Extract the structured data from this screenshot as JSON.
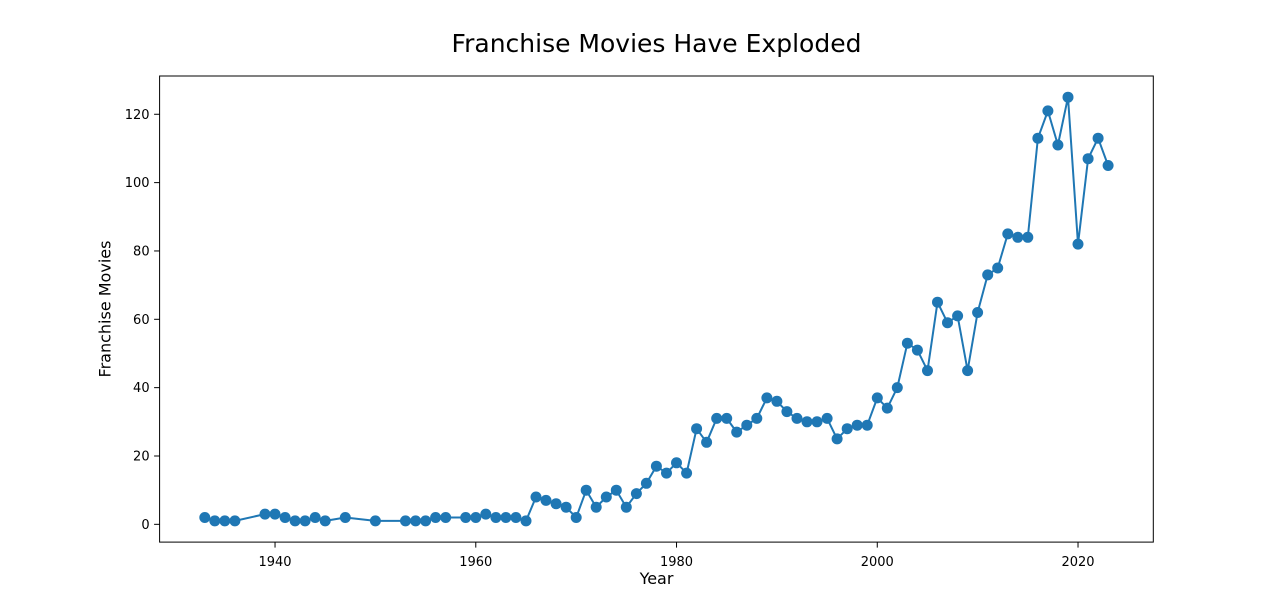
{
  "chart_data": {
    "type": "line",
    "title": "Franchise Movies Have Exploded",
    "xlabel": "Year",
    "ylabel": "Franchise Movies",
    "line_color": "#1f77b4",
    "marker": "circle",
    "grid": false,
    "legend": "none",
    "xlim": [
      1928.5,
      2027.5
    ],
    "ylim": [
      -5.2,
      131.2
    ],
    "x_ticks": [
      1940,
      1960,
      1980,
      2000,
      2020
    ],
    "y_ticks": [
      0,
      20,
      40,
      60,
      80,
      100,
      120
    ],
    "x": [
      1933,
      1934,
      1935,
      1936,
      1939,
      1940,
      1941,
      1942,
      1943,
      1944,
      1945,
      1947,
      1950,
      1953,
      1954,
      1955,
      1956,
      1957,
      1959,
      1960,
      1961,
      1962,
      1963,
      1964,
      1965,
      1966,
      1967,
      1968,
      1969,
      1970,
      1971,
      1972,
      1973,
      1974,
      1975,
      1976,
      1977,
      1978,
      1979,
      1980,
      1981,
      1982,
      1983,
      1984,
      1985,
      1986,
      1987,
      1988,
      1989,
      1990,
      1991,
      1992,
      1993,
      1994,
      1995,
      1996,
      1997,
      1998,
      1999,
      2000,
      2001,
      2002,
      2003,
      2004,
      2005,
      2006,
      2007,
      2008,
      2009,
      2010,
      2011,
      2012,
      2013,
      2014,
      2015,
      2016,
      2017,
      2018,
      2019,
      2020,
      2021,
      2022,
      2023
    ],
    "y": [
      2,
      1,
      1,
      1,
      3,
      3,
      2,
      1,
      1,
      2,
      1,
      2,
      1,
      1,
      1,
      1,
      2,
      2,
      2,
      2,
      3,
      2,
      2,
      2,
      1,
      8,
      7,
      6,
      5,
      2,
      10,
      5,
      8,
      10,
      5,
      9,
      12,
      17,
      15,
      18,
      15,
      28,
      24,
      31,
      31,
      27,
      29,
      31,
      37,
      36,
      33,
      31,
      30,
      30,
      31,
      25,
      28,
      29,
      29,
      37,
      34,
      40,
      53,
      51,
      45,
      65,
      59,
      61,
      45,
      62,
      73,
      75,
      85,
      84,
      84,
      113,
      121,
      111,
      125,
      82,
      107,
      113,
      105
    ]
  }
}
